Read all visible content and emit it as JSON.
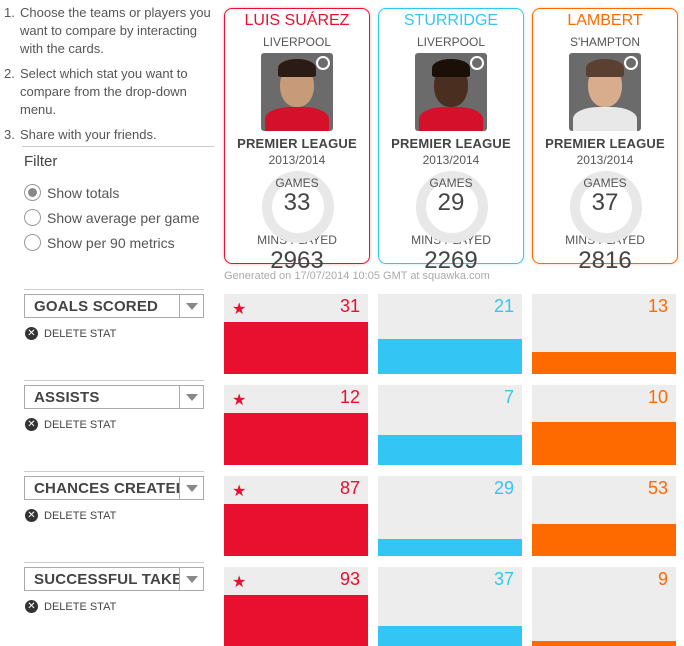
{
  "colors": {
    "suarez": "#e8102e",
    "sturridge": "#33c6f4",
    "lambert": "#ff6a00"
  },
  "instructions": [
    {
      "num": "1.",
      "text": "Choose the teams or players you want to compare by interacting with the cards."
    },
    {
      "num": "2.",
      "text": "Select which stat you want to compare from the drop-down menu."
    },
    {
      "num": "3.",
      "text": "Share with your friends."
    }
  ],
  "filter": {
    "title": "Filter",
    "options": [
      {
        "label": "Show totals",
        "checked": true
      },
      {
        "label": "Show average per game",
        "checked": false
      },
      {
        "label": "Show per 90 metrics",
        "checked": false
      }
    ]
  },
  "players": [
    {
      "name": "LUIS SUÁREZ",
      "club": "LIVERPOOL",
      "league": "PREMIER LEAGUE",
      "season": "2013/2014",
      "games_label": "GAMES",
      "games": "33",
      "mins_label": "MINS PLAYED",
      "mins": "2963",
      "color": "#e8102e",
      "photo_icon": "player-photo-suarez"
    },
    {
      "name": "STURRIDGE",
      "club": "LIVERPOOL",
      "league": "PREMIER LEAGUE",
      "season": "2013/2014",
      "games_label": "GAMES",
      "games": "29",
      "mins_label": "MINS PLAYED",
      "mins": "2269",
      "color": "#33c6f4",
      "photo_icon": "player-photo-sturridge"
    },
    {
      "name": "LAMBERT",
      "club": "S'HAMPTON",
      "league": "PREMIER LEAGUE",
      "season": "2013/2014",
      "games_label": "GAMES",
      "games": "37",
      "mins_label": "MINS PLAYED",
      "mins": "2816",
      "color": "#ff6a00",
      "photo_icon": "player-photo-lambert"
    }
  ],
  "generated": "Generated on 17/07/2014 10:05 GMT at squawka.com",
  "delete_label": "DELETE STAT",
  "stats": [
    {
      "label": "GOALS SCORED",
      "values": [
        31,
        21,
        13
      ],
      "display": [
        "31",
        "21",
        "13"
      ],
      "leader": 0
    },
    {
      "label": "ASSISTS",
      "values": [
        12,
        7,
        10
      ],
      "display": [
        "12",
        "7",
        "10"
      ],
      "leader": 0
    },
    {
      "label": "CHANCES CREATED",
      "values": [
        87,
        29,
        53
      ],
      "display": [
        "87",
        "29",
        "53"
      ],
      "leader": 0
    },
    {
      "label": "SUCCESSFUL TAKE-ONS",
      "values": [
        93,
        37,
        9
      ],
      "display": [
        "93",
        "37",
        "9"
      ],
      "leader": 0
    }
  ]
}
